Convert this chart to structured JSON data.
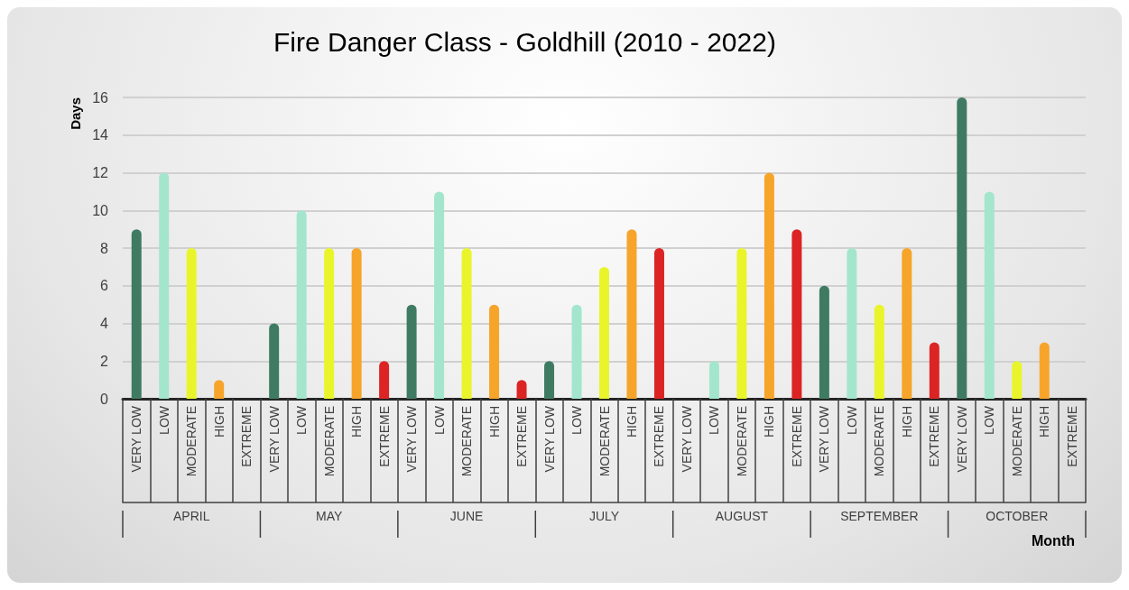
{
  "chart_data": {
    "type": "bar",
    "title": "Fire Danger Class - Goldhill (2010 - 2022)",
    "xlabel": "Month",
    "ylabel": "Days",
    "categories": [
      "VERY LOW",
      "LOW",
      "MODERATE",
      "HIGH",
      "EXTREME",
      "VERY LOW",
      "LOW",
      "MODERATE",
      "HIGH",
      "EXTREME",
      "VERY LOW",
      "LOW",
      "MODERATE",
      "HIGH",
      "EXTREME",
      "VERY LOW",
      "LOW",
      "MODERATE",
      "HIGH",
      "EXTREME",
      "VERY LOW",
      "LOW",
      "MODERATE",
      "HIGH",
      "EXTREME",
      "VERY LOW",
      "LOW",
      "MODERATE",
      "HIGH",
      "EXTREME",
      "VERY LOW",
      "LOW",
      "MODERATE",
      "HIGH",
      "EXTREME"
    ],
    "values": [
      9,
      12,
      8,
      1,
      0,
      4,
      10,
      8,
      8,
      2,
      5,
      11,
      8,
      5,
      1,
      2,
      5,
      7,
      9,
      8,
      0,
      2,
      8,
      12,
      9,
      6,
      8,
      5,
      8,
      3,
      16,
      11,
      2,
      3,
      0
    ],
    "colors": [
      "#3f7b62",
      "#a3e6cd",
      "#e9f52a",
      "#f6a52a",
      "#dc2424",
      "#3f7b62",
      "#a3e6cd",
      "#e9f52a",
      "#f6a52a",
      "#dc2424",
      "#3f7b62",
      "#a3e6cd",
      "#e9f52a",
      "#f6a52a",
      "#dc2424",
      "#3f7b62",
      "#a3e6cd",
      "#e9f52a",
      "#f6a52a",
      "#dc2424",
      "#3f7b62",
      "#a3e6cd",
      "#e9f52a",
      "#f6a52a",
      "#dc2424",
      "#3f7b62",
      "#a3e6cd",
      "#e9f52a",
      "#f6a52a",
      "#dc2424",
      "#3f7b62",
      "#a3e6cd",
      "#e9f52a",
      "#f6a52a",
      "#dc2424"
    ],
    "annotations": [
      "APRIL",
      "MAY",
      "JUNE",
      "JULY",
      "AUGUST",
      "SEPTEMBER",
      "OCTOBER"
    ],
    "ylim": [
      0,
      16
    ],
    "yticks": [
      0,
      2,
      4,
      6,
      8,
      10,
      12,
      14,
      16
    ],
    "grid": "y"
  }
}
